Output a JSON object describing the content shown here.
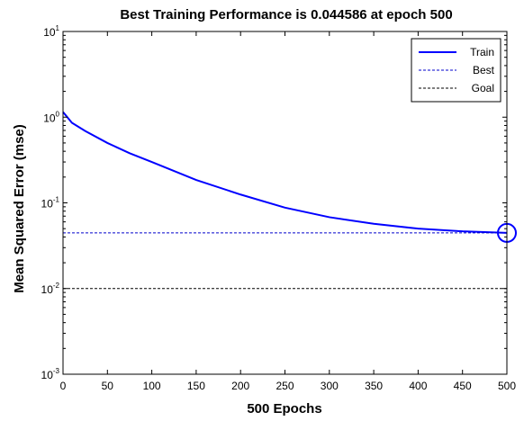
{
  "colors": {
    "train": "#0000ff",
    "best": "#0000cc",
    "goal": "#000000",
    "axes": "#000000",
    "background": "#ffffff"
  },
  "chart_data": {
    "type": "line",
    "title": "Best Training Performance is 0.044586 at epoch 500",
    "xlabel": "500 Epochs",
    "ylabel": "Mean Squared Error  (mse)",
    "xlim": [
      0,
      500
    ],
    "ylim": [
      0.001,
      10
    ],
    "yscale": "log",
    "grid": false,
    "legend_position": "top-right",
    "x_ticks": [
      0,
      50,
      100,
      150,
      200,
      250,
      300,
      350,
      400,
      450,
      500
    ],
    "y_ticks": [
      {
        "value": 0.001,
        "base": "10",
        "exp": "-3"
      },
      {
        "value": 0.01,
        "base": "10",
        "exp": "-2"
      },
      {
        "value": 0.1,
        "base": "10",
        "exp": "-1"
      },
      {
        "value": 1,
        "base": "10",
        "exp": "0"
      },
      {
        "value": 10,
        "base": "10",
        "exp": "1"
      }
    ],
    "series": [
      {
        "name": "Train",
        "style": "solid",
        "x": [
          0,
          10,
          25,
          50,
          75,
          100,
          150,
          200,
          250,
          300,
          350,
          400,
          450,
          500
        ],
        "y": [
          1.15,
          0.86,
          0.69,
          0.5,
          0.38,
          0.3,
          0.185,
          0.125,
          0.088,
          0.068,
          0.057,
          0.05,
          0.0465,
          0.044586
        ]
      },
      {
        "name": "Best",
        "style": "dashed",
        "x": [
          0,
          500
        ],
        "y": [
          0.044586,
          0.044586
        ]
      },
      {
        "name": "Goal",
        "style": "dashed",
        "x": [
          0,
          500
        ],
        "y": [
          0.01,
          0.01
        ]
      }
    ],
    "best_point": {
      "x": 500,
      "y": 0.044586
    },
    "best_vline_x": 500
  }
}
